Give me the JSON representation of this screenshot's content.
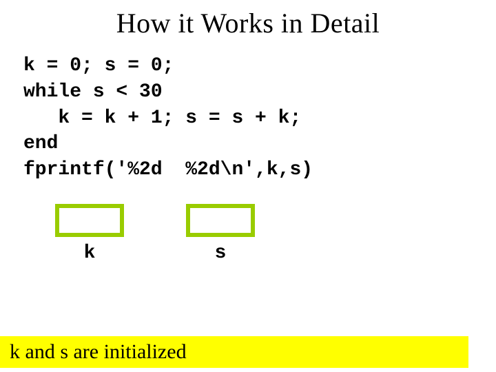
{
  "title": "How it Works in Detail",
  "code": {
    "line1": "k = 0; s = 0;",
    "line2": "while s < 30",
    "line3": "   k = k + 1; s = s + k;",
    "line4": "end",
    "line5": "fprintf('%2d  %2d\\n',k,s)"
  },
  "boxes": {
    "k": {
      "label": "k",
      "value": "",
      "border_color": "#99cc00"
    },
    "s": {
      "label": "s",
      "value": "",
      "border_color": "#99cc00"
    }
  },
  "caption": "k and s are initialized",
  "colors": {
    "background": "#ffffff",
    "highlight": "#ffff00",
    "box_border": "#99cc00",
    "text": "#000000"
  },
  "fonts": {
    "title_family": "Georgia, serif",
    "title_size_pt": 30,
    "code_family": "Courier New, monospace",
    "code_size_pt": 21,
    "caption_family": "Georgia, serif",
    "caption_size_pt": 22
  }
}
